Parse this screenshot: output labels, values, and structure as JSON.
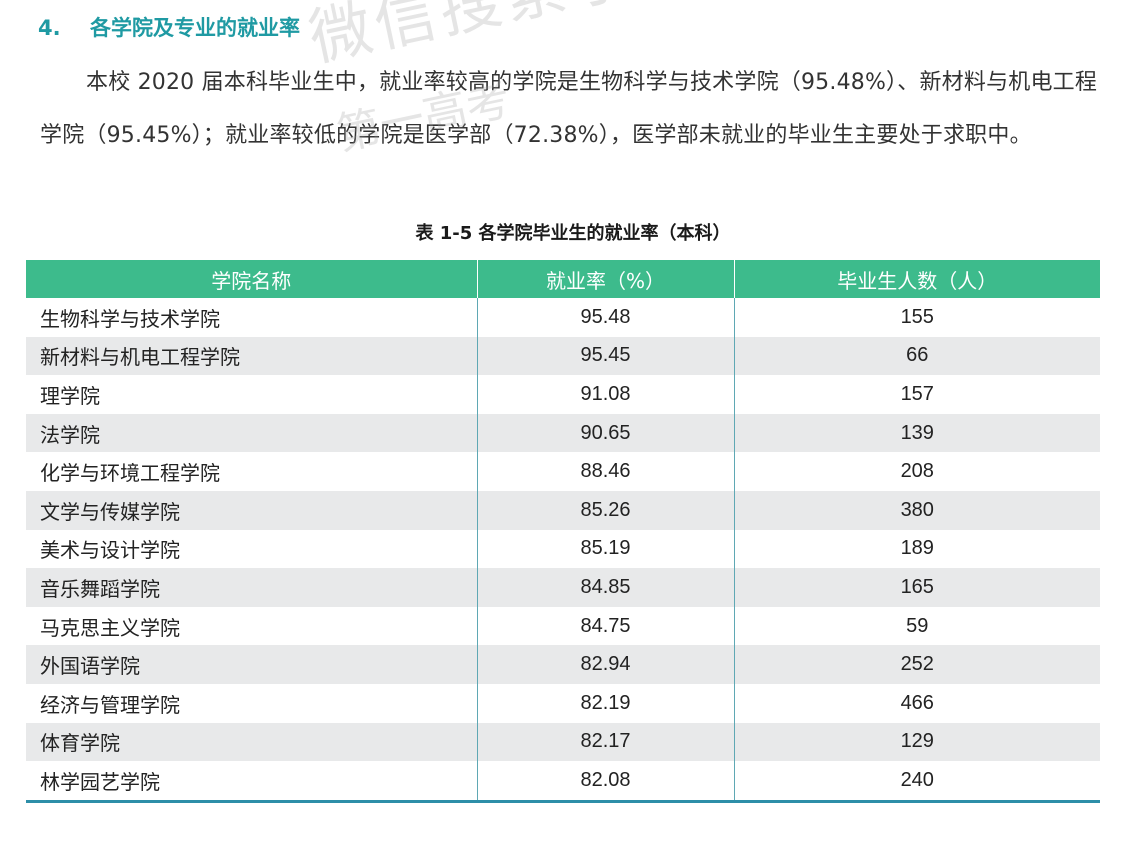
{
  "section": {
    "number": "4.",
    "title": "各学院及专业的就业率"
  },
  "paragraph": "本校 2020 届本科毕业生中，就业率较高的学院是生物科学与技术学院（95.48%）、新材料与机电工程学院（95.45%）；就业率较低的学院是医学部（72.38%），医学部未就业的毕业生主要处于求职中。",
  "table": {
    "caption": "表 1-5 各学院毕业生的就业率（本科）",
    "headers": [
      "学院名称",
      "就业率（%）",
      "毕业生人数（人）"
    ],
    "rows": [
      {
        "college": "生物科学与技术学院",
        "rate": "95.48",
        "count": "155"
      },
      {
        "college": "新材料与机电工程学院",
        "rate": "95.45",
        "count": "66"
      },
      {
        "college": "理学院",
        "rate": "91.08",
        "count": "157"
      },
      {
        "college": "法学院",
        "rate": "90.65",
        "count": "139"
      },
      {
        "college": "化学与环境工程学院",
        "rate": "88.46",
        "count": "208"
      },
      {
        "college": "文学与传媒学院",
        "rate": "85.26",
        "count": "380"
      },
      {
        "college": "美术与设计学院",
        "rate": "85.19",
        "count": "189"
      },
      {
        "college": "音乐舞蹈学院",
        "rate": "84.85",
        "count": "165"
      },
      {
        "college": "马克思主义学院",
        "rate": "84.75",
        "count": "59"
      },
      {
        "college": "外国语学院",
        "rate": "82.94",
        "count": "252"
      },
      {
        "college": "经济与管理学院",
        "rate": "82.19",
        "count": "466"
      },
      {
        "college": "体育学院",
        "rate": "82.17",
        "count": "129"
      },
      {
        "college": "林学园艺学院",
        "rate": "82.08",
        "count": "240"
      }
    ]
  },
  "watermark": {
    "line1": "微信搜索小程序取最新",
    "line2": "第一高考"
  },
  "colors": {
    "heading": "#1f9aa3",
    "header_bg": "#3dbb8c",
    "stripe": "#e8e9ea",
    "rule": "#2d8ea8"
  }
}
